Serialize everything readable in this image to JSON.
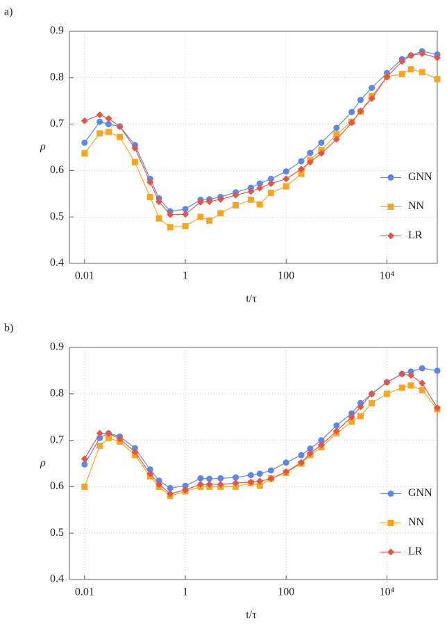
{
  "chart_data": [
    {
      "type": "line",
      "label": "a)",
      "xlabel": "t/τ",
      "ylabel": "ρ",
      "x": [
        0.01,
        0.02,
        0.03,
        0.05,
        0.1,
        0.2,
        0.3,
        0.5,
        1,
        2,
        3,
        5,
        10,
        20,
        30,
        50,
        100,
        200,
        300,
        500,
        1000,
        2000,
        3000,
        5000,
        10000,
        20000,
        30000,
        50000,
        100000
      ],
      "xscale": "log",
      "xlim": [
        0.005,
        100000
      ],
      "xticks": [
        0.01,
        1,
        100,
        {
          "value": 10000,
          "label": "10⁴"
        }
      ],
      "ylim": [
        0.4,
        0.9
      ],
      "yticks": [
        0.4,
        0.5,
        0.6,
        0.7,
        0.8,
        0.9
      ],
      "grid": true,
      "legend": "right",
      "series": [
        {
          "name": "GNN",
          "color": "#5f86e0",
          "marker": "circle",
          "values": [
            0.66,
            0.705,
            0.7,
            0.695,
            0.655,
            0.582,
            0.54,
            0.512,
            0.517,
            0.537,
            0.538,
            0.543,
            0.553,
            0.563,
            0.572,
            0.582,
            0.598,
            0.62,
            0.638,
            0.66,
            0.692,
            0.726,
            0.752,
            0.778,
            0.81,
            0.84,
            0.848,
            0.857,
            0.85
          ]
        },
        {
          "name": "NN",
          "color": "#f5a623",
          "marker": "square",
          "values": [
            0.637,
            0.68,
            0.683,
            0.672,
            0.618,
            0.543,
            0.497,
            0.478,
            0.48,
            0.5,
            0.492,
            0.508,
            0.525,
            0.537,
            0.527,
            0.552,
            0.566,
            0.593,
            0.623,
            0.644,
            0.678,
            0.705,
            0.727,
            0.76,
            0.802,
            0.808,
            0.818,
            0.812,
            0.797
          ]
        },
        {
          "name": "LR",
          "color": "#e0574a",
          "marker": "diamond",
          "values": [
            0.707,
            0.72,
            0.712,
            0.695,
            0.648,
            0.575,
            0.533,
            0.505,
            0.506,
            0.532,
            0.533,
            0.538,
            0.547,
            0.555,
            0.562,
            0.572,
            0.582,
            0.603,
            0.618,
            0.637,
            0.667,
            0.703,
            0.728,
            0.755,
            0.802,
            0.835,
            0.848,
            0.852,
            0.843
          ]
        }
      ]
    },
    {
      "type": "line",
      "label": "b)",
      "xlabel": "t/τ",
      "ylabel": "ρ",
      "x": [
        0.01,
        0.02,
        0.03,
        0.05,
        0.1,
        0.2,
        0.3,
        0.5,
        1,
        2,
        3,
        5,
        10,
        20,
        30,
        50,
        100,
        200,
        300,
        500,
        1000,
        2000,
        3000,
        5000,
        10000,
        20000,
        30000,
        50000,
        100000
      ],
      "xscale": "log",
      "xlim": [
        0.005,
        100000
      ],
      "xticks": [
        0.01,
        1,
        100,
        {
          "value": 10000,
          "label": "10⁴"
        }
      ],
      "ylim": [
        0.4,
        0.9
      ],
      "yticks": [
        0.4,
        0.5,
        0.6,
        0.7,
        0.8,
        0.9
      ],
      "grid": true,
      "legend": "right",
      "series": [
        {
          "name": "GNN",
          "color": "#5f86e0",
          "marker": "circle",
          "values": [
            0.648,
            0.705,
            0.715,
            0.708,
            0.683,
            0.637,
            0.613,
            0.597,
            0.602,
            0.618,
            0.617,
            0.618,
            0.62,
            0.625,
            0.628,
            0.635,
            0.652,
            0.668,
            0.682,
            0.7,
            0.732,
            0.758,
            0.78,
            0.8,
            0.825,
            0.843,
            0.848,
            0.855,
            0.85
          ]
        },
        {
          "name": "NN",
          "color": "#f5a623",
          "marker": "square",
          "values": [
            0.6,
            0.688,
            0.705,
            0.697,
            0.668,
            0.622,
            0.6,
            0.58,
            0.59,
            0.6,
            0.6,
            0.6,
            0.6,
            0.608,
            0.602,
            0.618,
            0.63,
            0.65,
            0.668,
            0.685,
            0.715,
            0.74,
            0.752,
            0.78,
            0.8,
            0.813,
            0.818,
            0.808,
            0.767
          ]
        },
        {
          "name": "LR",
          "color": "#e0574a",
          "marker": "diamond",
          "values": [
            0.66,
            0.715,
            0.715,
            0.703,
            0.675,
            0.628,
            0.605,
            0.585,
            0.593,
            0.605,
            0.605,
            0.605,
            0.608,
            0.61,
            0.612,
            0.617,
            0.632,
            0.652,
            0.672,
            0.69,
            0.72,
            0.75,
            0.772,
            0.8,
            0.825,
            0.843,
            0.84,
            0.823,
            0.77
          ]
        }
      ]
    }
  ]
}
